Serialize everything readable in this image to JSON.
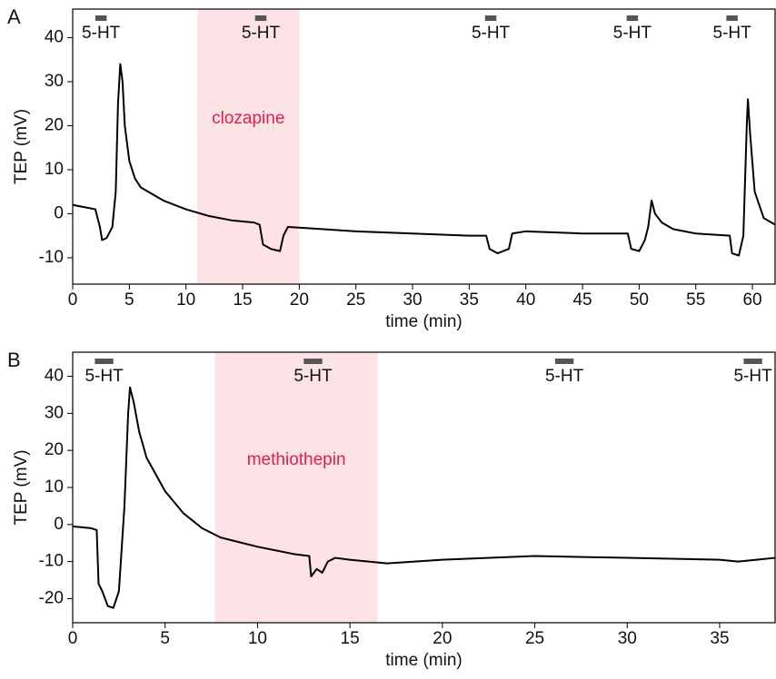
{
  "chart_data": [
    {
      "type": "line",
      "panel_label": "A",
      "x_label": "time (min)",
      "y_label": "TEP (mV)",
      "color": "#000000",
      "x": [
        0,
        1,
        2,
        2.4,
        2.6,
        3.0,
        3.5,
        3.8,
        4.0,
        4.2,
        4.4,
        4.6,
        5,
        5.5,
        6,
        7,
        8,
        10,
        12,
        14,
        16,
        16.5,
        16.8,
        17.5,
        18.3,
        18.6,
        19,
        22,
        25,
        30,
        35,
        36.5,
        36.8,
        37.5,
        38.5,
        38.8,
        40,
        45,
        49,
        49.3,
        50,
        50.5,
        50.8,
        51.1,
        51.4,
        52,
        53,
        55,
        58,
        58.2,
        58.8,
        59.2,
        59.5,
        59.6,
        59.8,
        60.2,
        61,
        62
      ],
      "values": [
        2,
        1.5,
        1,
        -3,
        -6,
        -5.5,
        -3,
        5,
        25,
        34,
        30,
        20,
        12,
        8,
        6,
        4.5,
        3,
        1,
        -0.5,
        -1.5,
        -2,
        -2.5,
        -7,
        -8,
        -8.5,
        -5,
        -3,
        -3.5,
        -4,
        -4.5,
        -5,
        -5,
        -8,
        -9,
        -8,
        -4.5,
        -4,
        -4.5,
        -4.5,
        -8,
        -8.5,
        -6,
        -3,
        3,
        0,
        -2,
        -3.5,
        -4.5,
        -5,
        -9,
        -9.5,
        -5,
        20,
        26,
        18,
        5,
        -1,
        -2.5
      ],
      "xlim": [
        0,
        62
      ],
      "xticks": [
        0,
        5,
        10,
        15,
        20,
        25,
        30,
        35,
        40,
        45,
        50,
        55,
        60
      ],
      "ylim": [
        -16,
        46.5
      ],
      "yticks": [
        -10,
        0,
        10,
        20,
        30,
        40
      ],
      "shade": {
        "label": "clozapine",
        "start": 11,
        "end": 20,
        "color": "#fde3e6",
        "label_color": "#e0204a"
      },
      "stimuli": [
        {
          "label": "5-HT",
          "start": 2.0,
          "end": 3.0
        },
        {
          "label": "5-HT",
          "start": 16.1,
          "end": 17.1
        },
        {
          "label": "5-HT",
          "start": 36.4,
          "end": 37.4
        },
        {
          "label": "5-HT",
          "start": 48.9,
          "end": 49.9
        },
        {
          "label": "5-HT",
          "start": 57.7,
          "end": 58.7
        }
      ]
    },
    {
      "type": "line",
      "panel_label": "B",
      "x_label": "time (min)",
      "y_label": "TEP (mV)",
      "color": "#000000",
      "x": [
        0,
        1,
        1.3,
        1.4,
        1.6,
        1.9,
        2.2,
        2.5,
        2.8,
        3.0,
        3.1,
        3.3,
        3.6,
        4,
        5,
        6,
        7,
        8,
        10,
        12,
        12.8,
        12.9,
        13.2,
        13.5,
        13.8,
        14.2,
        15,
        16,
        17,
        20,
        25,
        30,
        35,
        36,
        37,
        38
      ],
      "values": [
        -0.5,
        -1,
        -1.5,
        -16,
        -18,
        -22,
        -22.5,
        -18,
        5,
        30,
        37,
        33,
        25,
        18,
        9,
        3,
        -1,
        -3.5,
        -6,
        -8,
        -8.5,
        -14,
        -12,
        -13,
        -10,
        -9,
        -9.5,
        -10,
        -10.5,
        -9.5,
        -8.5,
        -9,
        -9.5,
        -10,
        -9.5,
        -9
      ],
      "xlim": [
        0,
        38
      ],
      "xticks": [
        0,
        5,
        10,
        15,
        20,
        25,
        30,
        35
      ],
      "ylim": [
        -26.5,
        46.5
      ],
      "yticks": [
        -20,
        -10,
        0,
        10,
        20,
        30,
        40
      ],
      "shade": {
        "label": "methiothepin",
        "start": 7.7,
        "end": 16.5,
        "color": "#fde3e6",
        "label_color": "#e0204a"
      },
      "stimuli": [
        {
          "label": "5-HT",
          "start": 1.2,
          "end": 2.2
        },
        {
          "label": "5-HT",
          "start": 12.5,
          "end": 13.5
        },
        {
          "label": "5-HT",
          "start": 26.1,
          "end": 27.1
        },
        {
          "label": "5-HT",
          "start": 36.3,
          "end": 37.3
        }
      ]
    }
  ]
}
